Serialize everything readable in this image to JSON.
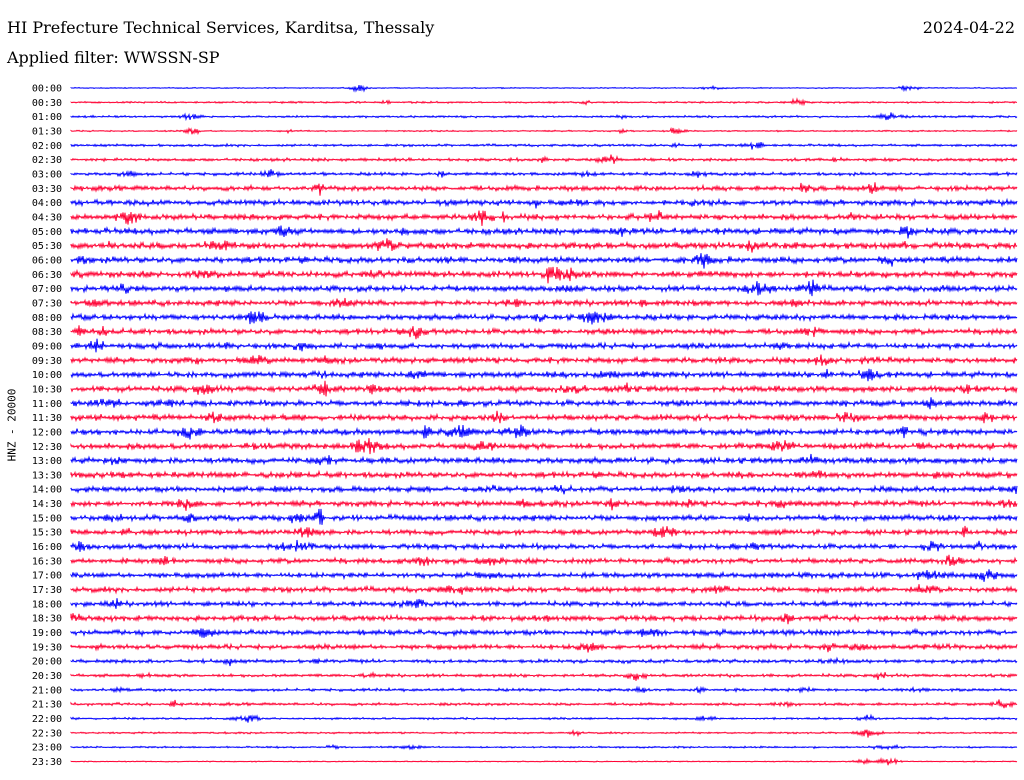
{
  "header": {
    "title": "HI Prefecture Technical Services, Karditsa, Thessaly",
    "date": "2024-04-22",
    "filter": "Applied filter: WWSSN-SP"
  },
  "chart_data": {
    "type": "line",
    "title": "HI Prefecture Technical Services, Karditsa, Thessaly",
    "subtitle": "Applied filter: WWSSN-SP",
    "date": "2024-04-22",
    "ylabel": "HNZ - 20000",
    "xlabel": "",
    "grid": false,
    "colors": {
      "even_row": "#0000ff",
      "odd_row": "#ff0033"
    },
    "rows": [
      {
        "label": "00:00",
        "amplitude": 0.15
      },
      {
        "label": "00:30",
        "amplitude": 0.25
      },
      {
        "label": "01:00",
        "amplitude": 0.3
      },
      {
        "label": "01:30",
        "amplitude": 0.2
      },
      {
        "label": "02:00",
        "amplitude": 0.35
      },
      {
        "label": "02:30",
        "amplitude": 0.45
      },
      {
        "label": "03:00",
        "amplitude": 0.45
      },
      {
        "label": "03:30",
        "amplitude": 0.7
      },
      {
        "label": "04:00",
        "amplitude": 0.8
      },
      {
        "label": "04:30",
        "amplitude": 0.8
      },
      {
        "label": "05:00",
        "amplitude": 0.9
      },
      {
        "label": "05:30",
        "amplitude": 0.9
      },
      {
        "label": "06:00",
        "amplitude": 0.9
      },
      {
        "label": "06:30",
        "amplitude": 0.9
      },
      {
        "label": "07:00",
        "amplitude": 0.8
      },
      {
        "label": "07:30",
        "amplitude": 0.8
      },
      {
        "label": "08:00",
        "amplitude": 0.8
      },
      {
        "label": "08:30",
        "amplitude": 0.8
      },
      {
        "label": "09:00",
        "amplitude": 0.8
      },
      {
        "label": "09:30",
        "amplitude": 0.8
      },
      {
        "label": "10:00",
        "amplitude": 0.8
      },
      {
        "label": "10:30",
        "amplitude": 0.85
      },
      {
        "label": "11:00",
        "amplitude": 0.85
      },
      {
        "label": "11:30",
        "amplitude": 0.85
      },
      {
        "label": "12:00",
        "amplitude": 0.85
      },
      {
        "label": "12:30",
        "amplitude": 0.85
      },
      {
        "label": "13:00",
        "amplitude": 0.85
      },
      {
        "label": "13:30",
        "amplitude": 0.85
      },
      {
        "label": "14:00",
        "amplitude": 0.8
      },
      {
        "label": "14:30",
        "amplitude": 0.8
      },
      {
        "label": "15:00",
        "amplitude": 0.8
      },
      {
        "label": "15:30",
        "amplitude": 0.75
      },
      {
        "label": "16:00",
        "amplitude": 0.75
      },
      {
        "label": "16:30",
        "amplitude": 0.75
      },
      {
        "label": "17:00",
        "amplitude": 0.75
      },
      {
        "label": "17:30",
        "amplitude": 0.75
      },
      {
        "label": "18:00",
        "amplitude": 0.7
      },
      {
        "label": "18:30",
        "amplitude": 0.75
      },
      {
        "label": "19:00",
        "amplitude": 0.75
      },
      {
        "label": "19:30",
        "amplitude": 0.7
      },
      {
        "label": "20:00",
        "amplitude": 0.5
      },
      {
        "label": "20:30",
        "amplitude": 0.45
      },
      {
        "label": "21:00",
        "amplitude": 0.4
      },
      {
        "label": "21:30",
        "amplitude": 0.4
      },
      {
        "label": "22:00",
        "amplitude": 0.3
      },
      {
        "label": "22:30",
        "amplitude": 0.25
      },
      {
        "label": "23:00",
        "amplitude": 0.25
      },
      {
        "label": "23:30",
        "amplitude": 0.15
      }
    ]
  }
}
